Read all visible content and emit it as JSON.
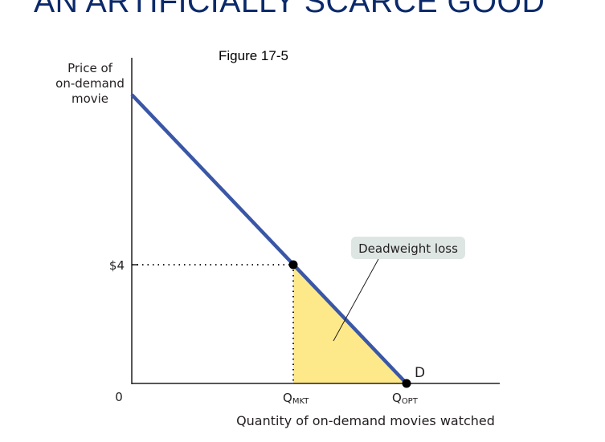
{
  "slide": {
    "title": "AN ARTIFICIALLY SCARCE GOOD",
    "figure_label": "Figure 17-5"
  },
  "graph": {
    "y_axis_label": [
      "Price of",
      "on-demand",
      "movie"
    ],
    "x_axis_label": "Quantity of on-demand movies watched",
    "price_tick": "$4",
    "origin": "0",
    "q_mkt": {
      "main": "Q",
      "sub": "MKT"
    },
    "q_opt": {
      "main": "Q",
      "sub": "OPT"
    },
    "demand_label": "D",
    "callout": "Deadweight loss",
    "colors": {
      "demand": "#3a57a7",
      "deadweight_loss": "#fde98a",
      "callout_bg": "#dde6e3",
      "title": "#0b2a6b"
    }
  }
}
